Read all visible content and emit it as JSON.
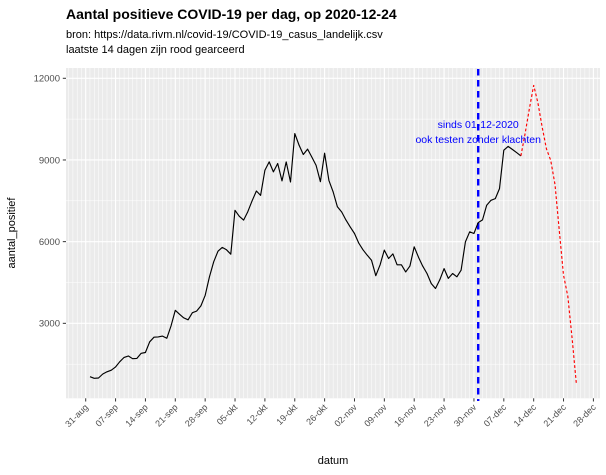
{
  "header": {
    "title": "Aantal positieve COVID-19 per dag, op 2020-12-24",
    "subtitle_line1": "bron: https://data.rivm.nl/covid-19/COVID-19_casus_landelijk.csv",
    "subtitle_line2": "laatste 14 dagen zijn rood gearceerd"
  },
  "chart_data": {
    "type": "line",
    "title": "Aantal positieve COVID-19 per dag, op 2020-12-24",
    "xlabel": "datum",
    "ylabel": "aantal_positief",
    "panel_bg": "#EBEBEB",
    "grid_color": "#FFFFFF",
    "tick_color": "#333333",
    "axis_text_color": "#4D4D4D",
    "axis_title_color": "#000000",
    "ylim": [
      0,
      12400
    ],
    "y_tick_values": [
      3000,
      6000,
      9000,
      12000
    ],
    "y_minor_values": [
      1500,
      4500,
      7500,
      10500
    ],
    "x_tick_labels": [
      "31-aug",
      "07-sep",
      "14-sep",
      "21-sep",
      "28-sep",
      "05-okt",
      "12-okt",
      "19-okt",
      "26-okt",
      "02-nov",
      "09-nov",
      "16-nov",
      "23-nov",
      "30-nov",
      "07-dec",
      "14-dec",
      "21-dec",
      "28-dec"
    ],
    "x_tick_dates": [
      "2020-08-31",
      "2020-09-07",
      "2020-09-14",
      "2020-09-21",
      "2020-09-28",
      "2020-10-05",
      "2020-10-12",
      "2020-10-19",
      "2020-10-26",
      "2020-11-02",
      "2020-11-09",
      "2020-11-16",
      "2020-11-23",
      "2020-11-30",
      "2020-12-07",
      "2020-12-14",
      "2020-12-21",
      "2020-12-28"
    ],
    "vline": {
      "date": "2020-12-01",
      "color": "#0000FF",
      "style": "dashed"
    },
    "annotation": {
      "lines": [
        "sinds 01-12-2020",
        "ook testen zonder klachten"
      ],
      "color": "#0000FF",
      "anchor_date": "2020-12-01"
    },
    "series": [
      {
        "name": "aantal_positief",
        "color": "#000000",
        "dash": "solid",
        "dates": [
          "2020-09-01",
          "2020-09-02",
          "2020-09-03",
          "2020-09-04",
          "2020-09-05",
          "2020-09-06",
          "2020-09-07",
          "2020-09-08",
          "2020-09-09",
          "2020-09-10",
          "2020-09-11",
          "2020-09-12",
          "2020-09-13",
          "2020-09-14",
          "2020-09-15",
          "2020-09-16",
          "2020-09-17",
          "2020-09-18",
          "2020-09-19",
          "2020-09-20",
          "2020-09-21",
          "2020-09-22",
          "2020-09-23",
          "2020-09-24",
          "2020-09-25",
          "2020-09-26",
          "2020-09-27",
          "2020-09-28",
          "2020-09-29",
          "2020-09-30",
          "2020-10-01",
          "2020-10-02",
          "2020-10-03",
          "2020-10-04",
          "2020-10-05",
          "2020-10-06",
          "2020-10-07",
          "2020-10-08",
          "2020-10-09",
          "2020-10-10",
          "2020-10-11",
          "2020-10-12",
          "2020-10-13",
          "2020-10-14",
          "2020-10-15",
          "2020-10-16",
          "2020-10-17",
          "2020-10-18",
          "2020-10-19",
          "2020-10-20",
          "2020-10-21",
          "2020-10-22",
          "2020-10-23",
          "2020-10-24",
          "2020-10-25",
          "2020-10-26",
          "2020-10-27",
          "2020-10-28",
          "2020-10-29",
          "2020-10-30",
          "2020-10-31",
          "2020-11-01",
          "2020-11-02",
          "2020-11-03",
          "2020-11-04",
          "2020-11-05",
          "2020-11-06",
          "2020-11-07",
          "2020-11-08",
          "2020-11-09",
          "2020-11-10",
          "2020-11-11",
          "2020-11-12",
          "2020-11-13",
          "2020-11-14",
          "2020-11-15",
          "2020-11-16",
          "2020-11-17",
          "2020-11-18",
          "2020-11-19",
          "2020-11-20",
          "2020-11-21",
          "2020-11-22",
          "2020-11-23",
          "2020-11-24",
          "2020-11-25",
          "2020-11-26",
          "2020-11-27",
          "2020-11-28",
          "2020-11-29",
          "2020-11-30",
          "2020-12-01",
          "2020-12-02",
          "2020-12-03",
          "2020-12-04",
          "2020-12-05",
          "2020-12-06",
          "2020-12-07",
          "2020-12-08",
          "2020-12-09",
          "2020-12-10",
          "2020-12-11"
        ],
        "values": [
          1040,
          980,
          990,
          1140,
          1220,
          1280,
          1400,
          1590,
          1750,
          1800,
          1700,
          1710,
          1900,
          1930,
          2320,
          2490,
          2500,
          2530,
          2450,
          2900,
          3480,
          3330,
          3200,
          3130,
          3390,
          3450,
          3640,
          4030,
          4700,
          5260,
          5650,
          5790,
          5700,
          5540,
          7150,
          6930,
          6790,
          7100,
          7500,
          7860,
          7700,
          8620,
          8930,
          8560,
          8870,
          8230,
          8930,
          8190,
          9970,
          9550,
          9200,
          9400,
          9110,
          8800,
          8200,
          9250,
          8250,
          7820,
          7280,
          7090,
          6790,
          6540,
          6300,
          5950,
          5700,
          5500,
          5320,
          4750,
          5150,
          5690,
          5380,
          5550,
          5150,
          5150,
          4890,
          5100,
          5810,
          5430,
          5100,
          4830,
          4460,
          4280,
          4600,
          5010,
          4650,
          4830,
          4710,
          4950,
          5990,
          6360,
          6300,
          6700,
          6800,
          7340,
          7520,
          7580,
          7950,
          9360,
          9500,
          9390,
          9270,
          9150
        ]
      },
      {
        "name": "laatste 14 dagen (rood gearceerd)",
        "color": "#FF0000",
        "dash": "dashed",
        "dates": [
          "2020-12-11",
          "2020-12-12",
          "2020-12-13",
          "2020-12-14",
          "2020-12-15",
          "2020-12-16",
          "2020-12-17",
          "2020-12-18",
          "2020-12-19",
          "2020-12-20",
          "2020-12-21",
          "2020-12-22",
          "2020-12-23",
          "2020-12-24"
        ],
        "values": [
          9150,
          9970,
          10890,
          11740,
          11100,
          10200,
          9400,
          8990,
          8100,
          6400,
          4770,
          4000,
          2450,
          800
        ]
      }
    ]
  }
}
